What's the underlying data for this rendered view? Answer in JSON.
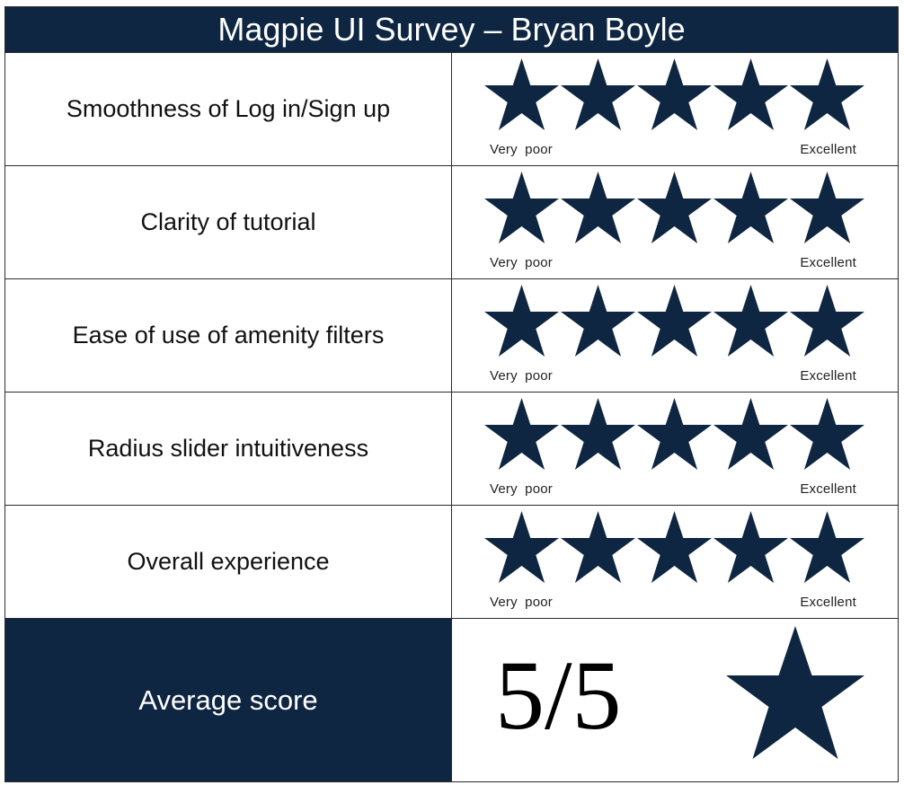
{
  "title": "Magpie UI Survey – Bryan Boyle",
  "scale": {
    "low_label": "Very poor",
    "high_label": "Excellent",
    "max_stars": 5
  },
  "questions": [
    {
      "label": "Smoothness of Log in/Sign up",
      "rating": 5
    },
    {
      "label": "Clarity of tutorial",
      "rating": 5
    },
    {
      "label": "Ease of use of amenity filters",
      "rating": 5
    },
    {
      "label": "Radius slider intuitiveness",
      "rating": 5
    },
    {
      "label": "Overall experience",
      "rating": 5
    }
  ],
  "average": {
    "label": "Average score",
    "score": "5/5",
    "star_icon": "star-icon"
  },
  "colors": {
    "navy": "#0e2641",
    "white": "#ffffff",
    "border": "#2b2b2b"
  }
}
